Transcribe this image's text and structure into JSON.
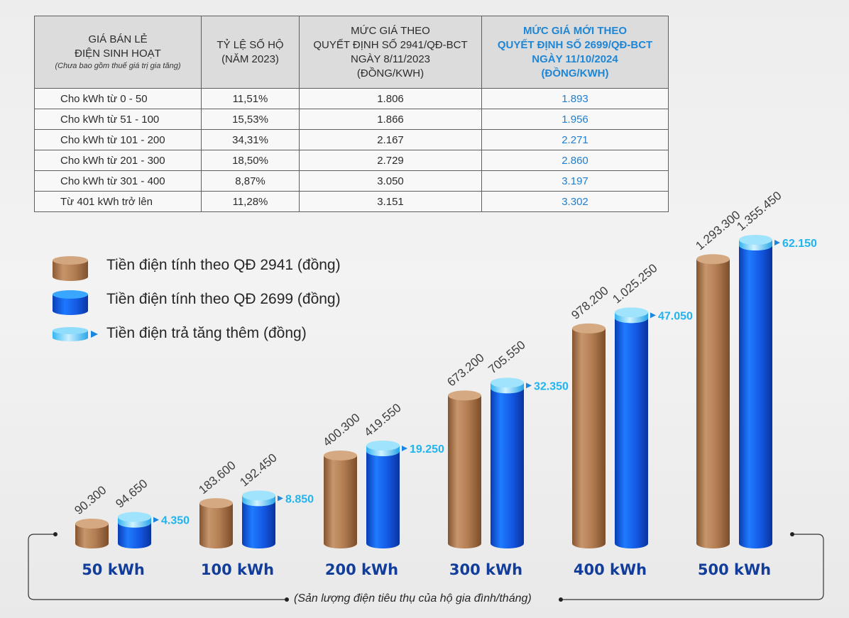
{
  "table": {
    "headers": {
      "col1_main": "GIÁ BÁN LẺ\nĐIỆN SINH HOẠT",
      "col1_note": "(Chưa bao gồm thuế giá trị gia tăng)",
      "col2": "TỶ LỆ SỐ HỘ\n(NĂM 2023)",
      "col3": "MỨC GIÁ THEO\nQUYẾT ĐỊNH SỐ 2941/QĐ-BCT\nNGÀY 8/11/2023\n(ĐỒNG/KWH)",
      "col4": "MỨC GIÁ MỚI THEO\nQUYẾT ĐỊNH SỐ 2699/QĐ-BCT\nNGÀY 11/10/2024\n(ĐỒNG/KWH)"
    },
    "rows": [
      {
        "label": "Cho kWh từ 0 - 50",
        "ratio": "11,51%",
        "old": "1.806",
        "new": "1.893"
      },
      {
        "label": "Cho kWh từ  51 - 100",
        "ratio": "15,53%",
        "old": "1.866",
        "new": "1.956"
      },
      {
        "label": "Cho kWh từ 101 - 200",
        "ratio": "34,31%",
        "old": "2.167",
        "new": "2.271"
      },
      {
        "label": "Cho kWh từ 201 - 300",
        "ratio": "18,50%",
        "old": "2.729",
        "new": "2.860"
      },
      {
        "label": "Cho kWh từ 301 - 400",
        "ratio": "8,87%",
        "old": "3.050",
        "new": "3.197"
      },
      {
        "label": "Từ 401 kWh trở lên",
        "ratio": "11,28%",
        "old": "3.151",
        "new": "3.302"
      }
    ]
  },
  "legend": {
    "old_label": "Tiền điện tính theo QĐ 2941 (đồng)",
    "new_label": "Tiền điện tính theo QĐ 2699 (đồng)",
    "diff_label": "Tiền điện trả tăng thêm (đồng)"
  },
  "colors": {
    "old": "#b78357",
    "new": "#1565e6",
    "diff": "#21b4ee",
    "category": "#123d9a"
  },
  "chart_data": {
    "type": "bar",
    "categories": [
      "50 kWh",
      "100 kWh",
      "200 kWh",
      "300 kWh",
      "400 kWh",
      "500 kWh"
    ],
    "series": [
      {
        "name": "Tiền điện tính theo QĐ 2941 (đồng)",
        "values": [
          90300,
          183600,
          400300,
          673200,
          978200,
          1293300
        ],
        "labels": [
          "90.300",
          "183.600",
          "400.300",
          "673.200",
          "978.200",
          "1.293.300"
        ]
      },
      {
        "name": "Tiền điện tính theo QĐ 2699 (đồng)",
        "values": [
          94650,
          192450,
          419550,
          705550,
          1025250,
          1355450
        ],
        "labels": [
          "94.650",
          "192.450",
          "419.550",
          "705.550",
          "1.025.250",
          "1.355.450"
        ]
      },
      {
        "name": "Tiền điện trả tăng thêm (đồng)",
        "values": [
          4350,
          8850,
          19250,
          32350,
          47050,
          62150
        ],
        "labels": [
          "4.350",
          "8.850",
          "19.250",
          "32.350",
          "47.050",
          "62.150"
        ]
      }
    ],
    "xlabel": "(Sản lượng điện tiêu thụ của hộ gia đình/tháng)",
    "ylabel": "",
    "ylim": [
      0,
      1355450
    ],
    "grid": false,
    "legend_position": "left"
  }
}
